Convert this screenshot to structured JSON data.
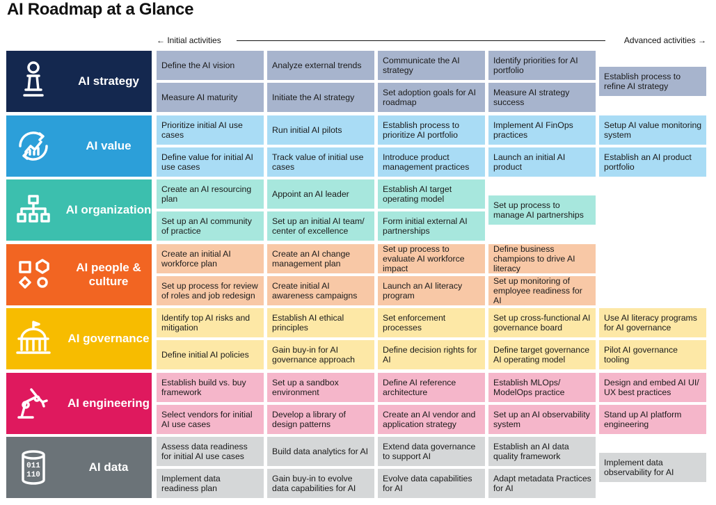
{
  "title": "AI Roadmap at a Glance",
  "axis": {
    "start": "Initial activities",
    "end": "Advanced activities"
  },
  "rows": [
    {
      "label": "AI strategy",
      "color": "#14284f",
      "cell_color": "#a7b4cd",
      "cells": [
        [
          "Define the AI vision",
          "Measure AI maturity"
        ],
        [
          "Analyze external trends",
          "Initiate the AI strategy"
        ],
        [
          "Communicate the AI strategy",
          "Set adoption goals for AI roadmap"
        ],
        [
          "Identify priorities for AI portfolio",
          "Measure AI strategy success"
        ],
        [
          "Establish process to refine AI strategy"
        ]
      ]
    },
    {
      "label": "AI value",
      "color": "#2c9fd9",
      "cell_color": "#a9dcf5",
      "cells": [
        [
          "Prioritize initial AI use cases",
          "Define value for initial AI use cases"
        ],
        [
          "Run initial AI pilots",
          "Track value of initial use cases"
        ],
        [
          "Establish process to prioritize AI portfolio",
          "Introduce product management practices"
        ],
        [
          "Implement AI FinOps practices",
          "Launch an initial AI product"
        ],
        [
          "Setup AI value monitoring system",
          "Establish an AI product portfolio"
        ]
      ]
    },
    {
      "label": "AI organization",
      "color": "#3cbfae",
      "cell_color": "#a7e7dd",
      "cells": [
        [
          "Create an AI resourcing plan",
          "Set up an AI community of practice"
        ],
        [
          "Appoint an AI leader",
          "Set up an initial AI team/ center of excellence"
        ],
        [
          "Establish AI target operating model",
          "Form initial external AI partnerships"
        ],
        [
          "Set up process to manage AI partnerships"
        ],
        []
      ]
    },
    {
      "label": "AI people & culture",
      "color": "#f26522",
      "cell_color": "#f8c8a6",
      "cells": [
        [
          "Create an initial AI workforce plan",
          "Set up process for review of roles and job redesign"
        ],
        [
          "Create an AI change management plan",
          "Create initial AI awareness campaigns"
        ],
        [
          "Set up process to evaluate AI workforce impact",
          "Launch an AI literacy program"
        ],
        [
          "Define business champions to drive AI literacy",
          "Set up monitoring of employee readiness for AI"
        ],
        []
      ]
    },
    {
      "label": "AI governance",
      "color": "#f7bc00",
      "cell_color": "#fde8a6",
      "cells": [
        [
          "Identify top AI risks and mitigation",
          "Define initial AI policies"
        ],
        [
          "Establish AI ethical principles",
          "Gain buy-in for AI governance approach"
        ],
        [
          "Set enforcement processes",
          "Define decision rights for AI"
        ],
        [
          "Set up cross-functional AI governance board",
          "Define target governance AI operating model"
        ],
        [
          "Use AI literacy programs for AI governance",
          "Pilot AI governance tooling"
        ]
      ]
    },
    {
      "label": "AI engineering",
      "color": "#df195e",
      "cell_color": "#f5b6ca",
      "cells": [
        [
          "Establish build vs. buy framework",
          "Select vendors for initial AI use cases"
        ],
        [
          "Set up a sandbox environment",
          "Develop a library of design patterns"
        ],
        [
          "Define AI reference architecture",
          "Create an AI vendor and application strategy"
        ],
        [
          "Establish MLOps/ ModelOps practice",
          "Set up an AI observability system"
        ],
        [
          "Design and embed AI UI/ UX best practices",
          "Stand up AI platform engineering"
        ]
      ]
    },
    {
      "label": "AI data",
      "color": "#6b7378",
      "cell_color": "#d5d7d8",
      "cells": [
        [
          "Assess data readiness for initial AI use cases",
          "Implement data readiness plan"
        ],
        [
          "Build data analytics for AI",
          "Gain buy-in to evolve data capabilities for AI"
        ],
        [
          "Extend data governance to support AI",
          "Evolve data capabilities for AI"
        ],
        [
          "Establish an AI data quality framework",
          "Adapt metadata Practices for AI"
        ],
        [
          "Implement data observability for AI"
        ]
      ]
    }
  ]
}
